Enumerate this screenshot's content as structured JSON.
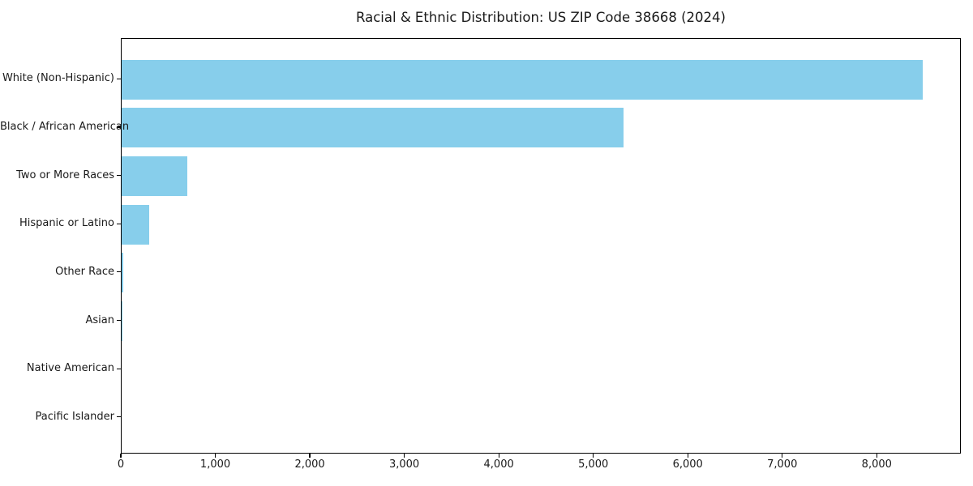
{
  "chart_data": {
    "type": "bar",
    "orientation": "horizontal",
    "title": "Racial & Ethnic Distribution: US ZIP Code 38668 (2024)",
    "categories": [
      "White (Non-Hispanic)",
      "Black / African American",
      "Two or More Races",
      "Hispanic or Latino",
      "Other Race",
      "Asian",
      "Native American",
      "Pacific Islander"
    ],
    "values": [
      8475,
      5315,
      695,
      295,
      20,
      5,
      0,
      0
    ],
    "xlabel": "",
    "ylabel": "",
    "xlim": [
      0,
      8890
    ],
    "x_ticks": [
      0,
      1000,
      2000,
      3000,
      4000,
      5000,
      6000,
      7000,
      8000
    ],
    "x_tick_labels": [
      "0",
      "1,000",
      "2,000",
      "3,000",
      "4,000",
      "5,000",
      "6,000",
      "7,000",
      "8,000"
    ],
    "bar_color": "#87CEEB",
    "grid": false,
    "legend": null,
    "plot_border_color": "#000000"
  }
}
